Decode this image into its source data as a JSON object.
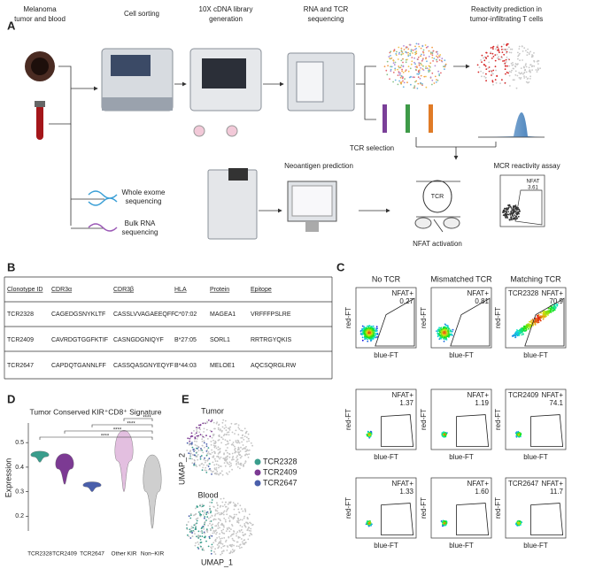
{
  "panel_a": {
    "label": "A",
    "steps": [
      [
        "Melanoma",
        "tumor and blood"
      ],
      [
        "Cell sorting"
      ],
      [
        "10X cDNA library",
        "generation"
      ],
      [
        "RNA and TCR",
        "sequencing"
      ],
      [
        "Reactivity prediction in",
        "tumor-infiltrating T cells"
      ]
    ],
    "tcr_selection": "TCR selection",
    "neoantigen": "Neoantigen prediction",
    "mcr": "MCR reactivity assay",
    "wes": [
      "Whole exome",
      "sequencing"
    ],
    "bulk": [
      "Bulk RNA",
      "sequencing"
    ],
    "nfat_activation": "NFAT activation",
    "tcr": "TCR",
    "assay_gate": "NFAT",
    "assay_value": "3.61"
  },
  "panel_b": {
    "label": "B",
    "header": [
      "Clonotype ID",
      "CDR3α",
      "CDR3β",
      "HLA",
      "Protein",
      "Epitope"
    ],
    "rows": [
      [
        "TCR2328",
        "CAGEDGSNYKLTF",
        "CASSLVVAGAEEQFF",
        "C*07:02",
        "MAGEA1",
        "VRFFFPSLRE"
      ],
      [
        "TCR2409",
        "CAVRDGTGGFKTIF",
        "CASNGDGNIQYF",
        "B*27:05",
        "SORL1",
        "RRTRGYQKIS"
      ],
      [
        "TCR2647",
        "CAPDQTGANNLFF",
        "CASSQASGNYEQYF",
        "B*44:03",
        "MELOE1",
        "AQCSQRGLRW"
      ]
    ]
  },
  "panel_c": {
    "label": "C",
    "columns": [
      "No TCR",
      "Mismatched TCR",
      "Matching TCR"
    ],
    "x_label": "blue-FT",
    "y_label": "red-FT",
    "gate_label": "NFAT+",
    "rows": [
      {
        "tcr": "TCR2328",
        "values": [
          "0.27",
          "0.81",
          "70.9"
        ]
      },
      {
        "tcr": "TCR2409",
        "values": [
          "1.37",
          "1.19",
          "74.1"
        ]
      },
      {
        "tcr": "TCR2647",
        "values": [
          "1.33",
          "1.60",
          "11.7"
        ]
      }
    ]
  },
  "panel_d": {
    "label": "D",
    "title": "Tumor Conserved KIR⁺CD8⁺ Signature",
    "y_label": "Expression",
    "categories": [
      "TCR2328",
      "TCR2409",
      "TCR2647",
      "Other KIR",
      "Non–KIR"
    ],
    "colors": [
      "#3a9d8c",
      "#7c3a93",
      "#4a5fab",
      "#e3bfe0",
      "#cfcfcf"
    ],
    "ranges": [
      [
        0.42,
        0.465
      ],
      [
        0.33,
        0.455
      ],
      [
        0.3,
        0.34
      ],
      [
        0.3,
        0.55
      ],
      [
        0.15,
        0.45
      ]
    ],
    "ylim": [
      0.14,
      0.58
    ],
    "yticks": [
      0.2,
      0.3,
      0.4,
      0.5
    ],
    "significance": [
      "****",
      "****",
      "****",
      "****"
    ]
  },
  "panel_e": {
    "label": "E",
    "tumor": "Tumor",
    "blood": "Blood",
    "x_label": "UMAP_1",
    "y_label": "UMAP_2",
    "legend": [
      {
        "name": "TCR2328",
        "color": "#3a9d8c"
      },
      {
        "name": "TCR2409",
        "color": "#7c3a93"
      },
      {
        "name": "TCR2647",
        "color": "#4a5fab"
      }
    ]
  }
}
